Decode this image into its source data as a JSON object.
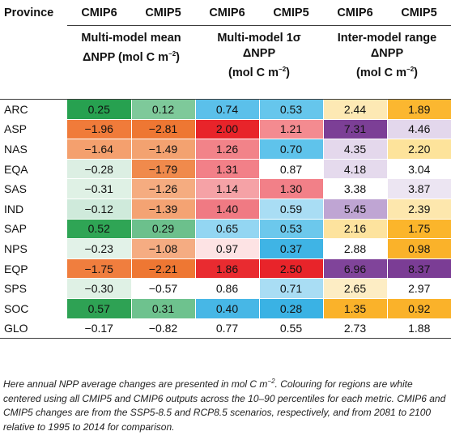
{
  "table": {
    "header": {
      "province": "Province",
      "cols": [
        "CMIP6",
        "CMIP5",
        "CMIP6",
        "CMIP5",
        "CMIP6",
        "CMIP5"
      ]
    },
    "groups": [
      {
        "line1": "Multi-model mean",
        "line2": "ΔNPP (mol C m",
        "sup": "−2",
        "tail": ")"
      },
      {
        "line1": "Multi-model 1σ",
        "line2": "ΔNPP",
        "line3": "(mol C m",
        "sup": "−2",
        "tail": ")"
      },
      {
        "line1": "Inter-model range",
        "line2": "ΔNPP",
        "line3": "(mol C m",
        "sup": "−2",
        "tail": ")"
      }
    ],
    "rows": [
      {
        "province": "ARC",
        "values": [
          "0.25",
          "0.12",
          "0.74",
          "0.53",
          "2.44",
          "1.89"
        ],
        "colors": [
          "#27a150",
          "#7ec99a",
          "#5bc0ea",
          "#66c6ec",
          "#fde9b4",
          "#fbb730"
        ]
      },
      {
        "province": "ASP",
        "values": [
          "−1.96",
          "−2.81",
          "2.00",
          "1.21",
          "7.31",
          "4.46"
        ],
        "colors": [
          "#f07b3a",
          "#ee7733",
          "#e8242a",
          "#f48b90",
          "#7c3f96",
          "#e3d7ec"
        ]
      },
      {
        "province": "NAS",
        "values": [
          "−1.64",
          "−1.49",
          "1.26",
          "0.70",
          "4.35",
          "2.20"
        ],
        "colors": [
          "#f4a06e",
          "#f3a270",
          "#f28389",
          "#5fc3eb",
          "#e4d8ec",
          "#fde39b"
        ]
      },
      {
        "province": "EQA",
        "values": [
          "−0.28",
          "−1.79",
          "1.31",
          "0.87",
          "4.18",
          "3.04"
        ],
        "colors": [
          "#dcefe3",
          "#f08a4c",
          "#f28088",
          "#ffffff",
          "#e5daed",
          "#ffffff"
        ]
      },
      {
        "province": "SAS",
        "values": [
          "−0.31",
          "−1.26",
          "1.14",
          "1.30",
          "3.38",
          "3.87"
        ],
        "colors": [
          "#dff1e5",
          "#f5ac80",
          "#f5a2a6",
          "#f28088",
          "#ffffff",
          "#ece5f2"
        ]
      },
      {
        "province": "IND",
        "values": [
          "−0.12",
          "−1.39",
          "1.40",
          "0.59",
          "5.45",
          "2.39"
        ],
        "colors": [
          "#cfeadb",
          "#f4a373",
          "#f07a83",
          "#a9ddf4",
          "#bfa5d3",
          "#fde7ad"
        ]
      },
      {
        "province": "SAP",
        "values": [
          "0.52",
          "0.29",
          "0.65",
          "0.53",
          "2.16",
          "1.75"
        ],
        "colors": [
          "#2fa555",
          "#6cc08c",
          "#93d6f2",
          "#6cc8ec",
          "#fde39e",
          "#fbb52b"
        ]
      },
      {
        "province": "NPS",
        "values": [
          "−0.23",
          "−1.08",
          "0.97",
          "0.37",
          "2.88",
          "0.98"
        ],
        "colors": [
          "#e2f2e8",
          "#f5ac82",
          "#fde3e4",
          "#3fb4e5",
          "#ffffff",
          "#fab22a"
        ]
      },
      {
        "province": "EQP",
        "values": [
          "−1.75",
          "−2.21",
          "1.86",
          "2.50",
          "6.96",
          "8.37"
        ],
        "colors": [
          "#f07e3e",
          "#ee7733",
          "#e92b30",
          "#e8242a",
          "#80449a",
          "#7b3d95"
        ]
      },
      {
        "province": "SPS",
        "values": [
          "−0.30",
          "−0.57",
          "0.86",
          "0.71",
          "2.65",
          "2.97"
        ],
        "colors": [
          "#dff1e5",
          "#ffffff",
          "#ffffff",
          "#a9ddf4",
          "#fdedc4",
          "#ffffff"
        ]
      },
      {
        "province": "SOC",
        "values": [
          "0.57",
          "0.31",
          "0.40",
          "0.28",
          "1.35",
          "0.92"
        ],
        "colors": [
          "#2ea254",
          "#6ec28e",
          "#47b7e6",
          "#3ab2e4",
          "#fab22a",
          "#fab22a"
        ]
      },
      {
        "province": "GLO",
        "values": [
          "−0.17",
          "−0.82",
          "0.77",
          "0.55",
          "2.73",
          "1.88"
        ],
        "colors": [
          "#ffffff",
          "#ffffff",
          "#ffffff",
          "#ffffff",
          "#ffffff",
          "#ffffff"
        ]
      }
    ]
  },
  "footnote": {
    "p1": "Here annual NPP average changes are presented in mol C m",
    "p1_sup": "−2",
    "p2": ". Colouring for regions are white centered using all CMIP5 and CMIP6 outputs across the 10–90 percentiles for each metric. CMIP6 and CMIP5 changes are from the SSP5-8.5 and RCP8.5 scenarios, respectively, and from 2081 to 2100 relative to 1995 to 2014 for comparison."
  }
}
